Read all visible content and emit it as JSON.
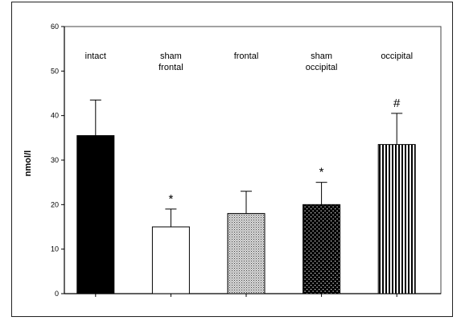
{
  "chart_data": {
    "type": "bar",
    "title": "",
    "xlabel": "",
    "ylabel": "nmol/l",
    "ylim": [
      0,
      60
    ],
    "yticks": [
      0,
      10,
      20,
      30,
      40,
      50,
      60
    ],
    "grid": false,
    "legend": "none",
    "categories": [
      {
        "lines": [
          "intact"
        ],
        "value": 35.5,
        "error": 8,
        "fill": "solid-black",
        "marker": ""
      },
      {
        "lines": [
          "sham",
          "frontal"
        ],
        "value": 15,
        "error": 4,
        "fill": "white",
        "marker": "*"
      },
      {
        "lines": [
          "frontal"
        ],
        "value": 18,
        "error": 5,
        "fill": "fine-grey-dots",
        "marker": ""
      },
      {
        "lines": [
          "sham",
          "occipital"
        ],
        "value": 20,
        "error": 5,
        "fill": "white-dots-on-black",
        "marker": "*"
      },
      {
        "lines": [
          "occipital"
        ],
        "value": 33.5,
        "error": 7,
        "fill": "vertical-stripes",
        "marker": "#"
      }
    ]
  }
}
